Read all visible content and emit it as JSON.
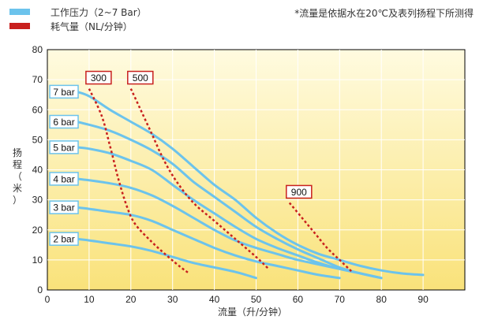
{
  "legend": {
    "pressure": "工作压力（2~7 Bar）",
    "air": "耗气量（NL/分钟）"
  },
  "note": "*流量是依据水在20℃及表列扬程下所测得",
  "colors": {
    "pressure_line": "#6CC3EC",
    "air_line": "#C8201E",
    "plot_top": "#FFFBE0",
    "plot_bottom": "#F9E27A"
  },
  "chart_data": {
    "type": "line",
    "xlabel": "流量（升/分钟）",
    "ylabel": "扬程（米）",
    "xlim": [
      0,
      100
    ],
    "ylim": [
      0,
      80
    ],
    "xticks": [
      "0",
      "10",
      "20",
      "30",
      "40",
      "50",
      "60",
      "70",
      "80",
      "90"
    ],
    "yticks": [
      "0",
      "10",
      "20",
      "30",
      "40",
      "50",
      "60",
      "70",
      "80"
    ],
    "series": [
      {
        "name": "7 bar",
        "label": "7 bar",
        "points": [
          [
            7,
            66
          ],
          [
            10,
            64.5
          ],
          [
            15,
            60
          ],
          [
            20,
            56
          ],
          [
            25,
            52
          ],
          [
            30,
            47
          ],
          [
            35,
            41
          ],
          [
            40,
            35
          ],
          [
            45,
            30
          ],
          [
            50,
            24
          ],
          [
            55,
            19
          ],
          [
            60,
            15
          ],
          [
            65,
            12
          ],
          [
            70,
            10
          ],
          [
            75,
            8
          ],
          [
            80,
            6.5
          ],
          [
            85,
            5.5
          ],
          [
            90,
            5
          ]
        ]
      },
      {
        "name": "6 bar",
        "label": "6 bar",
        "points": [
          [
            7,
            56
          ],
          [
            10,
            55
          ],
          [
            15,
            53
          ],
          [
            20,
            50
          ],
          [
            25,
            46.5
          ],
          [
            30,
            42
          ],
          [
            35,
            36
          ],
          [
            40,
            31
          ],
          [
            45,
            26
          ],
          [
            50,
            21
          ],
          [
            55,
            17
          ],
          [
            60,
            13.5
          ],
          [
            65,
            10.5
          ],
          [
            70,
            7.5
          ],
          [
            75,
            5.5
          ],
          [
            80,
            4
          ]
        ]
      },
      {
        "name": "5 bar",
        "label": "5 bar",
        "points": [
          [
            7,
            47.5
          ],
          [
            10,
            47
          ],
          [
            15,
            45.5
          ],
          [
            20,
            43
          ],
          [
            25,
            40
          ],
          [
            30,
            35
          ],
          [
            35,
            30
          ],
          [
            40,
            25.5
          ],
          [
            45,
            21
          ],
          [
            50,
            17
          ],
          [
            55,
            14
          ],
          [
            60,
            11.5
          ],
          [
            65,
            9
          ],
          [
            70,
            7
          ],
          [
            75,
            5.5
          ],
          [
            80,
            4
          ]
        ]
      },
      {
        "name": "4 bar",
        "label": "4 bar",
        "points": [
          [
            7,
            37
          ],
          [
            10,
            36.5
          ],
          [
            15,
            35.5
          ],
          [
            20,
            34
          ],
          [
            25,
            31.5
          ],
          [
            30,
            28
          ],
          [
            35,
            24
          ],
          [
            40,
            20
          ],
          [
            45,
            16.5
          ],
          [
            50,
            14
          ],
          [
            55,
            12
          ],
          [
            60,
            10
          ],
          [
            65,
            8.5
          ],
          [
            70,
            7
          ]
        ]
      },
      {
        "name": "3 bar",
        "label": "3 bar",
        "points": [
          [
            7,
            27.5
          ],
          [
            10,
            27
          ],
          [
            15,
            26
          ],
          [
            20,
            25
          ],
          [
            25,
            23
          ],
          [
            30,
            20
          ],
          [
            35,
            17
          ],
          [
            40,
            14
          ],
          [
            45,
            11.5
          ],
          [
            50,
            9.5
          ],
          [
            55,
            8
          ],
          [
            60,
            6.5
          ],
          [
            65,
            5
          ],
          [
            70,
            4
          ]
        ]
      },
      {
        "name": "2 bar",
        "label": "2 bar",
        "points": [
          [
            7,
            17
          ],
          [
            10,
            16.5
          ],
          [
            15,
            15.5
          ],
          [
            20,
            14.5
          ],
          [
            25,
            13
          ],
          [
            30,
            11
          ],
          [
            35,
            9
          ],
          [
            40,
            7.5
          ],
          [
            45,
            6
          ],
          [
            50,
            4
          ]
        ]
      }
    ],
    "air_consumption": [
      {
        "label": "300",
        "points": [
          [
            10,
            67
          ],
          [
            13,
            58
          ],
          [
            15,
            48
          ],
          [
            17,
            37
          ],
          [
            19,
            28
          ],
          [
            21,
            22
          ],
          [
            25,
            16
          ],
          [
            29,
            11
          ],
          [
            32,
            7.5
          ],
          [
            34,
            5.5
          ]
        ]
      },
      {
        "label": "500",
        "points": [
          [
            20,
            67
          ],
          [
            22,
            61
          ],
          [
            25,
            52
          ],
          [
            28,
            43
          ],
          [
            31,
            36
          ],
          [
            35,
            29
          ],
          [
            40,
            23
          ],
          [
            45,
            17
          ],
          [
            50,
            11
          ],
          [
            53,
            7
          ]
        ]
      },
      {
        "label": "900",
        "points": [
          [
            58,
            29
          ],
          [
            61,
            24
          ],
          [
            64,
            19
          ],
          [
            67,
            14
          ],
          [
            70,
            10
          ],
          [
            73,
            6
          ]
        ]
      }
    ]
  }
}
